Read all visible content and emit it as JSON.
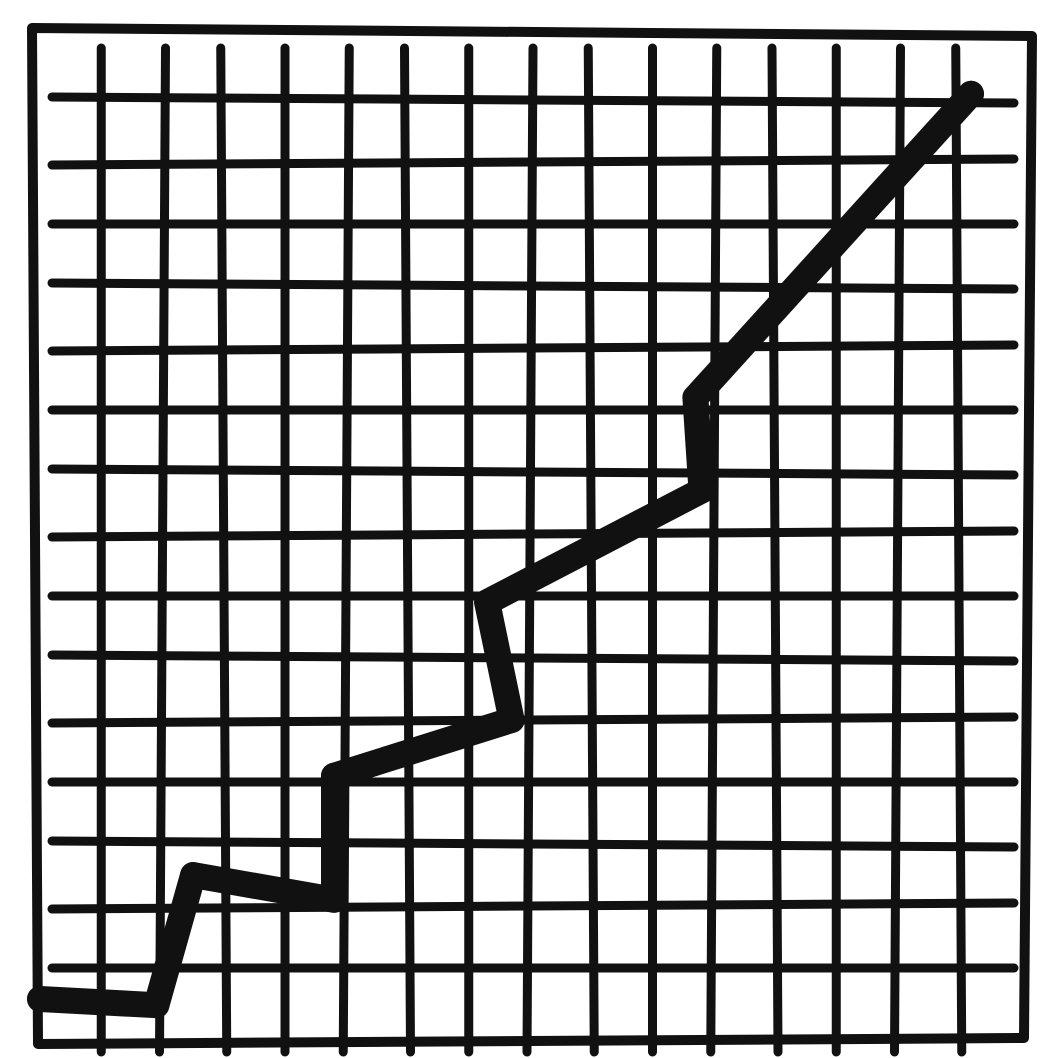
{
  "chart_data": {
    "type": "line",
    "title": "",
    "xlabel": "",
    "ylabel": "",
    "grid": true,
    "xlim": [
      0,
      16
    ],
    "ylim": [
      0,
      16
    ],
    "series": [
      {
        "points": [
          [
            0.0,
            0.5
          ],
          [
            1.9,
            0.4
          ],
          [
            2.5,
            2.5
          ],
          [
            4.8,
            2.1
          ],
          [
            4.8,
            4.1
          ],
          [
            7.7,
            5.0
          ],
          [
            7.3,
            6.9
          ],
          [
            10.8,
            8.7
          ],
          [
            10.7,
            10.2
          ],
          [
            15.2,
            15.1
          ]
        ]
      }
    ],
    "colors": {
      "ink": "#111111",
      "paper": "#ffffff"
    }
  }
}
